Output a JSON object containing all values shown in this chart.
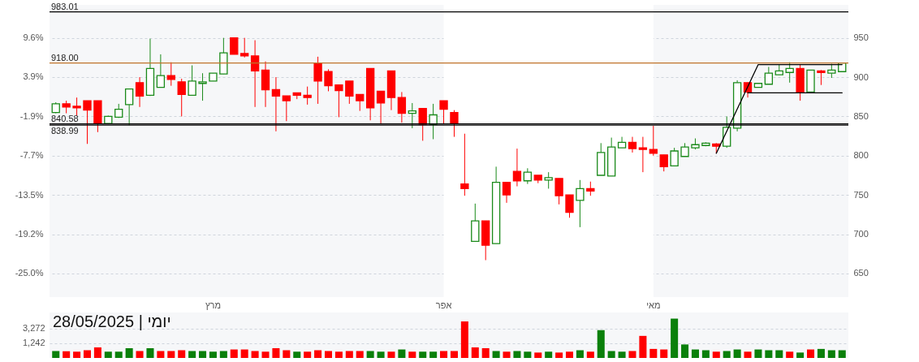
{
  "chart_data": [
    {
      "type": "candlestick",
      "categories": [
        null,
        null,
        null,
        null,
        null,
        null,
        null,
        null,
        null,
        null,
        null,
        null,
        null,
        null,
        null,
        "מרץ",
        null,
        null,
        null,
        null,
        null,
        null,
        null,
        null,
        null,
        null,
        null,
        null,
        null,
        null,
        null,
        null,
        null,
        null,
        null,
        null,
        null,
        "אפר",
        null,
        null,
        null,
        null,
        null,
        null,
        null,
        null,
        null,
        null,
        null,
        null,
        null,
        null,
        null,
        null,
        null,
        null,
        null,
        "מאי",
        null,
        null,
        null,
        null,
        null,
        null,
        null,
        null,
        null,
        null,
        null,
        null,
        null,
        null,
        null,
        null,
        null,
        null
      ],
      "ohlc": [
        [
          855,
          868,
          854,
          866
        ],
        [
          866,
          870,
          854,
          862
        ],
        [
          863,
          874,
          851,
          861
        ],
        [
          870,
          870,
          815,
          858
        ],
        [
          870,
          870,
          830,
          841
        ],
        [
          841,
          851,
          840,
          850
        ],
        [
          849,
          866,
          848,
          859
        ],
        [
          865,
          885,
          839,
          885
        ],
        [
          893,
          900,
          862,
          876
        ],
        [
          877,
          949,
          876,
          911
        ],
        [
          887,
          929,
          887,
          902
        ],
        [
          902,
          919,
          889,
          897
        ],
        [
          894,
          898,
          850,
          878
        ],
        [
          877,
          915,
          877,
          895
        ],
        [
          892,
          905,
          870,
          894
        ],
        [
          895,
          905,
          895,
          905
        ],
        [
          904,
          950,
          904,
          931
        ],
        [
          950,
          950,
          929,
          929
        ],
        [
          930,
          950,
          925,
          927
        ],
        [
          927,
          947,
          862,
          908
        ],
        [
          909,
          920,
          862,
          884
        ],
        [
          884,
          900,
          831,
          876
        ],
        [
          876,
          876,
          844,
          870
        ],
        [
          880,
          880,
          872,
          877
        ],
        [
          877,
          888,
          865,
          874
        ],
        [
          918,
          926,
          866,
          895
        ],
        [
          907,
          910,
          882,
          889
        ],
        [
          890,
          890,
          849,
          883
        ],
        [
          895,
          895,
          866,
          876
        ],
        [
          878,
          878,
          857,
          870
        ],
        [
          911,
          911,
          845,
          861
        ],
        [
          882,
          882,
          840,
          867
        ],
        [
          908,
          908,
          858,
          874
        ],
        [
          874,
          881,
          842,
          854
        ],
        [
          854,
          867,
          835,
          857
        ],
        [
          860,
          860,
          819,
          840
        ],
        [
          840,
          866,
          821,
          852
        ],
        [
          870,
          870,
          840,
          859
        ],
        [
          855,
          858,
          824,
          841
        ],
        [
          764,
          828,
          749,
          758
        ],
        [
          691,
          739,
          691,
          717
        ],
        [
          717,
          717,
          667,
          686
        ],
        [
          688,
          786,
          688,
          766
        ],
        [
          766,
          766,
          740,
          750
        ],
        [
          780,
          809,
          761,
          768
        ],
        [
          768,
          784,
          764,
          779
        ],
        [
          775,
          775,
          765,
          769
        ],
        [
          769,
          779,
          758,
          772
        ],
        [
          771,
          771,
          738,
          749
        ],
        [
          750,
          750,
          721,
          728
        ],
        [
          743,
          769,
          709,
          758
        ],
        [
          758,
          767,
          749,
          755
        ],
        [
          775,
          816,
          775,
          804
        ],
        [
          774,
          823,
          774,
          811
        ],
        [
          810,
          824,
          810,
          817
        ],
        [
          817,
          824,
          804,
          809
        ],
        [
          810,
          824,
          779,
          808
        ],
        [
          808,
          838,
          800,
          803
        ],
        [
          801,
          801,
          780,
          786
        ],
        [
          787,
          810,
          787,
          806
        ],
        [
          799,
          816,
          799,
          811
        ],
        [
          810,
          822,
          808,
          814
        ],
        [
          813,
          817,
          812,
          816
        ],
        [
          815,
          816,
          803,
          812
        ],
        [
          812,
          850,
          810,
          836
        ],
        [
          835,
          896,
          831,
          893
        ],
        [
          893,
          893,
          874,
          881
        ],
        [
          887,
          892,
          887,
          892
        ],
        [
          891,
          913,
          891,
          905
        ],
        [
          903,
          916,
          903,
          908
        ],
        [
          906,
          919,
          893,
          911
        ],
        [
          911,
          916,
          870,
          881
        ],
        [
          881,
          909,
          881,
          909
        ],
        [
          908,
          909,
          890,
          906
        ],
        [
          905,
          917,
          899,
          909
        ],
        [
          907,
          918,
          907,
          918
        ]
      ],
      "colors": [
        "#1a8a1a",
        "#ff0000",
        "#ff0000",
        "#ff0000",
        "#ff0000",
        "#1a8a1a",
        "#1a8a1a",
        "#1a8a1a",
        "#ff0000",
        "#1a8a1a",
        "#1a8a1a",
        "#ff0000",
        "#ff0000",
        "#1a8a1a",
        "#1a8a1a",
        "#1a8a1a",
        "#1a8a1a",
        "#ff0000",
        "#ff0000",
        "#ff0000",
        "#ff0000",
        "#ff0000",
        "#ff0000",
        "#ff0000",
        "#ff0000",
        "#ff0000",
        "#ff0000",
        "#ff0000",
        "#ff0000",
        "#ff0000",
        "#ff0000",
        "#ff0000",
        "#ff0000",
        "#ff0000",
        "#1a8a1a",
        "#ff0000",
        "#1a8a1a",
        "#ff0000",
        "#ff0000",
        "#ff0000",
        "#1a8a1a",
        "#ff0000",
        "#1a8a1a",
        "#ff0000",
        "#ff0000",
        "#1a8a1a",
        "#ff0000",
        "#1a8a1a",
        "#ff0000",
        "#ff0000",
        "#1a8a1a",
        "#ff0000",
        "#1a8a1a",
        "#1a8a1a",
        "#1a8a1a",
        "#ff0000",
        "#ff0000",
        "#ff0000",
        "#ff0000",
        "#1a8a1a",
        "#1a8a1a",
        "#1a8a1a",
        "#1a8a1a",
        "#ff0000",
        "#1a8a1a",
        "#1a8a1a",
        "#ff0000",
        "#1a8a1a",
        "#1a8a1a",
        "#1a8a1a",
        "#1a8a1a",
        "#ff0000",
        "#1a8a1a",
        "#ff0000",
        "#1a8a1a",
        "#1a8a1a"
      ],
      "series": [
        {
          "type": "line",
          "color": "#000000",
          "values": [
            null,
            null,
            null,
            null,
            null,
            null,
            null,
            null,
            null,
            null,
            null,
            null,
            null,
            null,
            null,
            null,
            null,
            null,
            null,
            null,
            null,
            null,
            null,
            null,
            null,
            null,
            null,
            null,
            null,
            null,
            null,
            null,
            null,
            null,
            null,
            null,
            null,
            null,
            null,
            null,
            null,
            null,
            null,
            null,
            null,
            null,
            null,
            null,
            null,
            null,
            null,
            null,
            null,
            null,
            null,
            null,
            null,
            null,
            null,
            null,
            null,
            null,
            null,
            803,
            null,
            null,
            null,
            916,
            null,
            null,
            null,
            null,
            null,
            null,
            null,
            916
          ]
        },
        {
          "type": "line",
          "color": "#000000",
          "values": [
            null,
            null,
            null,
            null,
            null,
            null,
            null,
            null,
            null,
            null,
            null,
            null,
            null,
            null,
            null,
            null,
            null,
            null,
            null,
            null,
            null,
            null,
            null,
            null,
            null,
            null,
            null,
            null,
            null,
            null,
            null,
            null,
            null,
            null,
            null,
            null,
            null,
            null,
            null,
            null,
            null,
            null,
            null,
            null,
            null,
            null,
            null,
            null,
            null,
            null,
            null,
            null,
            null,
            null,
            null,
            null,
            null,
            null,
            null,
            null,
            null,
            null,
            null,
            null,
            null,
            null,
            880,
            null,
            null,
            null,
            null,
            null,
            null,
            null,
            null,
            880
          ]
        }
      ],
      "ylim": [
        620,
        992
      ],
      "yticks": [
        650,
        700,
        750,
        800,
        850,
        900,
        950
      ],
      "y2lim": [
        -28.46,
        14.44
      ],
      "y2ticks": [
        {
          "value": 9.6,
          "label": "9.6%"
        },
        {
          "value": 3.9,
          "label": "3.9%"
        },
        {
          "value": -1.9,
          "label": "-1.9%"
        },
        {
          "value": -7.7,
          "label": "-7.7%"
        },
        {
          "value": -13.5,
          "label": "-13.5%"
        },
        {
          "value": -19.2,
          "label": "-19.2%"
        },
        {
          "value": -25.0,
          "label": "-25.0%"
        }
      ],
      "ref_lines": [
        {
          "axis": "y",
          "value": 983.01,
          "label": "983.01",
          "color": "#000000"
        },
        {
          "axis": "y",
          "value": 918,
          "label": "918.00",
          "color": "#c0732a"
        },
        {
          "axis": "y",
          "value": 840.58,
          "label": "840.58",
          "color": "#000000"
        },
        {
          "axis": "y",
          "value": 838.99,
          "label": "838.99",
          "color": "#000000"
        }
      ],
      "bands": [
        {
          "axis": "x",
          "from": "אפר",
          "to": "מאי",
          "color": "#ffffff"
        }
      ],
      "grid": "y"
    },
    {
      "type": "bar",
      "categories": [
        null,
        null,
        null,
        null,
        null,
        null,
        null,
        null,
        null,
        null,
        null,
        null,
        null,
        null,
        null,
        null,
        null,
        null,
        null,
        null,
        null,
        null,
        null,
        null,
        null,
        null,
        null,
        null,
        null,
        null,
        null,
        null,
        null,
        null,
        null,
        null,
        null,
        null,
        null,
        null,
        null,
        null,
        null,
        null,
        null,
        null,
        null,
        null,
        null,
        null,
        null,
        null,
        null,
        null,
        null,
        null,
        null,
        null,
        null,
        null,
        null,
        null,
        null,
        null,
        null,
        null,
        null,
        null,
        null,
        null,
        null,
        null,
        null,
        null,
        null,
        null
      ],
      "values": [
        740,
        730,
        710,
        780,
        940,
        710,
        710,
        890,
        740,
        890,
        740,
        740,
        780,
        740,
        740,
        710,
        740,
        820,
        820,
        740,
        710,
        890,
        780,
        710,
        710,
        780,
        740,
        710,
        740,
        740,
        740,
        710,
        710,
        820,
        710,
        710,
        710,
        740,
        740,
        5180,
        940,
        890,
        740,
        710,
        740,
        710,
        670,
        710,
        670,
        710,
        780,
        710,
        2920,
        740,
        710,
        740,
        2000,
        850,
        820,
        6220,
        1140,
        820,
        780,
        710,
        740,
        820,
        710,
        820,
        780,
        780,
        710,
        670,
        820,
        850,
        780,
        780
      ],
      "colors": [
        "#0a800a",
        "#ff0000",
        "#ff0000",
        "#ff0000",
        "#ff0000",
        "#0a800a",
        "#0a800a",
        "#0a800a",
        "#ff0000",
        "#0a800a",
        "#ff0000",
        "#ff0000",
        "#ff0000",
        "#0a800a",
        "#0a800a",
        "#0a800a",
        "#0a800a",
        "#ff0000",
        "#ff0000",
        "#ff0000",
        "#ff0000",
        "#ff0000",
        "#ff0000",
        "#0a800a",
        "#ff0000",
        "#ff0000",
        "#ff0000",
        "#ff0000",
        "#ff0000",
        "#ff0000",
        "#0a800a",
        "#0a800a",
        "#ff0000",
        "#0a800a",
        "#ff0000",
        "#0a800a",
        "#0a800a",
        "#ff0000",
        "#ff0000",
        "#ff0000",
        "#ff0000",
        "#ff0000",
        "#0a800a",
        "#ff0000",
        "#0a800a",
        "#0a800a",
        "#ff0000",
        "#0a800a",
        "#ff0000",
        "#ff0000",
        "#0a800a",
        "#ff0000",
        "#0a800a",
        "#0a800a",
        "#0a800a",
        "#ff0000",
        "#ff0000",
        "#ff0000",
        "#ff0000",
        "#0a800a",
        "#0a800a",
        "#0a800a",
        "#0a800a",
        "#ff0000",
        "#0a800a",
        "#0a800a",
        "#ff0000",
        "#0a800a",
        "#0a800a",
        "#0a800a",
        "#ff0000",
        "#0a800a",
        "#ff0000",
        "#0a800a",
        "#0a800a",
        "#0a800a"
      ],
      "ylim": [
        470,
        9300
      ],
      "yticks": [
        {
          "value": 1242,
          "label": "1,242"
        },
        {
          "value": 3272,
          "label": "3,272"
        }
      ],
      "log": true,
      "grid": "y",
      "tick_labels": "y",
      "annotations": [
        "יומי | 28/05/2025"
      ]
    }
  ]
}
